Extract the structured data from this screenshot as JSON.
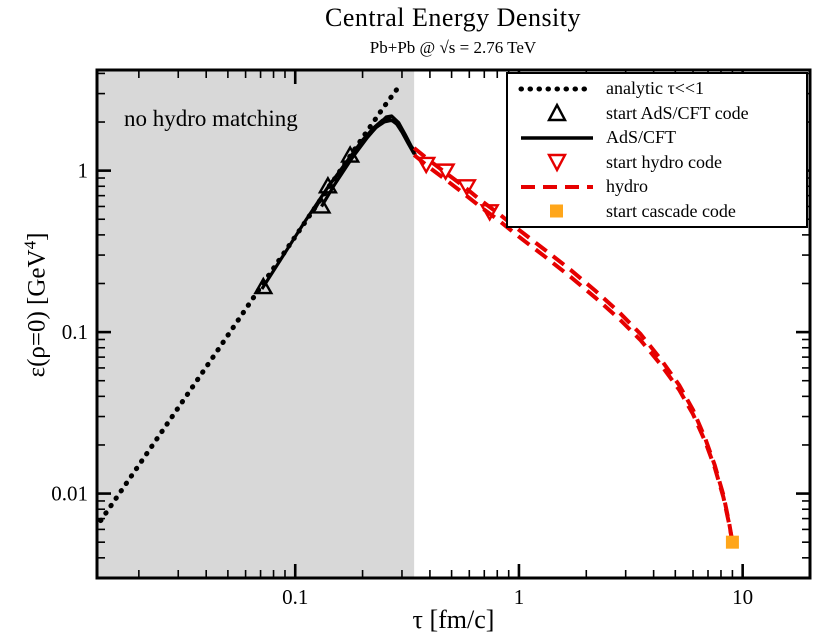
{
  "chart_data": {
    "type": "line",
    "title": "Central Energy Density",
    "subtitle": "Pb+Pb @ √s = 2.76 TeV",
    "xlabel": "τ [fm/c]",
    "ylabel_parts": {
      "main": "ε(ρ=0) [GeV",
      "sup": "4",
      "close": "]"
    },
    "xscale": "log",
    "yscale": "log",
    "xlim": [
      0.013,
      20
    ],
    "ylim": [
      0.003,
      4.2
    ],
    "x_ticks": [
      {
        "v": 0.1,
        "label": "0.1"
      },
      {
        "v": 1,
        "label": "1"
      },
      {
        "v": 10,
        "label": "10"
      }
    ],
    "y_ticks": [
      {
        "v": 0.01,
        "label": "0.01"
      },
      {
        "v": 0.1,
        "label": "0.1"
      },
      {
        "v": 1,
        "label": "1"
      }
    ],
    "shaded_region": {
      "x_from": 0.013,
      "x_to": 0.34,
      "color": "#d8d8d8",
      "label": "no hydro matching"
    },
    "series": [
      {
        "name": "analytic τ<<1",
        "style": "dotted",
        "color": "#000000",
        "width": 5,
        "points": [
          [
            0.0135,
            0.0068
          ],
          [
            0.02,
            0.015
          ],
          [
            0.03,
            0.034
          ],
          [
            0.045,
            0.077
          ],
          [
            0.07,
            0.19
          ],
          [
            0.1,
            0.39
          ],
          [
            0.145,
            0.83
          ],
          [
            0.2,
            1.6
          ],
          [
            0.25,
            2.5
          ],
          [
            0.29,
            3.3
          ]
        ]
      },
      {
        "name": "AdS/CFT",
        "style": "solid",
        "color": "#000000",
        "width": 3.2,
        "points": [
          [
            0.071,
            0.185
          ],
          [
            0.09,
            0.31
          ],
          [
            0.11,
            0.48
          ],
          [
            0.14,
            0.79
          ],
          [
            0.17,
            1.14
          ],
          [
            0.2,
            1.55
          ],
          [
            0.225,
            1.85
          ],
          [
            0.245,
            2.05
          ],
          [
            0.26,
            2.1
          ],
          [
            0.28,
            2.0
          ],
          [
            0.3,
            1.73
          ],
          [
            0.32,
            1.47
          ],
          [
            0.34,
            1.27
          ]
        ]
      },
      {
        "name": "AdS/CFT",
        "style": "solid",
        "color": "#000000",
        "width": 3.2,
        "points": [
          [
            0.131,
            0.6
          ],
          [
            0.15,
            0.82
          ],
          [
            0.18,
            1.2
          ],
          [
            0.21,
            1.6
          ],
          [
            0.235,
            1.92
          ],
          [
            0.255,
            2.15
          ],
          [
            0.27,
            2.18
          ],
          [
            0.29,
            1.98
          ],
          [
            0.31,
            1.68
          ],
          [
            0.33,
            1.42
          ],
          [
            0.345,
            1.3
          ]
        ]
      },
      {
        "name": "AdS/CFT",
        "style": "solid",
        "color": "#000000",
        "width": 3.2,
        "points": [
          [
            0.14,
            0.8
          ],
          [
            0.17,
            1.1
          ],
          [
            0.2,
            1.5
          ],
          [
            0.23,
            1.85
          ],
          [
            0.25,
            2.0
          ],
          [
            0.27,
            2.05
          ],
          [
            0.29,
            1.9
          ],
          [
            0.31,
            1.62
          ],
          [
            0.33,
            1.38
          ],
          [
            0.345,
            1.25
          ]
        ]
      },
      {
        "name": "hydro",
        "style": "dashed",
        "color": "#e60000",
        "width": 4,
        "points": [
          [
            0.34,
            1.25
          ],
          [
            0.4,
            1.04
          ],
          [
            0.47,
            0.88
          ],
          [
            0.56,
            0.73
          ],
          [
            0.67,
            0.6
          ],
          [
            0.8,
            0.5
          ],
          [
            1.0,
            0.39
          ],
          [
            1.3,
            0.295
          ],
          [
            1.7,
            0.22
          ],
          [
            2.2,
            0.163
          ],
          [
            2.8,
            0.121
          ],
          [
            3.5,
            0.089
          ],
          [
            4.3,
            0.063
          ],
          [
            5.2,
            0.044
          ],
          [
            6.0,
            0.031
          ],
          [
            6.8,
            0.021
          ],
          [
            7.5,
            0.0145
          ],
          [
            8.2,
            0.0095
          ],
          [
            8.7,
            0.0065
          ],
          [
            9.0,
            0.005
          ]
        ]
      },
      {
        "name": "hydro",
        "style": "dashed",
        "color": "#e60000",
        "width": 4,
        "points": [
          [
            0.34,
            1.38
          ],
          [
            0.4,
            1.15
          ],
          [
            0.47,
            0.97
          ],
          [
            0.56,
            0.81
          ],
          [
            0.67,
            0.66
          ],
          [
            0.8,
            0.55
          ],
          [
            1.0,
            0.43
          ],
          [
            1.3,
            0.325
          ],
          [
            1.7,
            0.243
          ],
          [
            2.2,
            0.18
          ],
          [
            2.8,
            0.133
          ],
          [
            3.5,
            0.097
          ],
          [
            4.3,
            0.068
          ],
          [
            5.2,
            0.047
          ],
          [
            6.0,
            0.033
          ],
          [
            6.8,
            0.022
          ],
          [
            7.5,
            0.015
          ],
          [
            8.2,
            0.0098
          ],
          [
            8.7,
            0.0066
          ],
          [
            9.0,
            0.005
          ]
        ]
      }
    ],
    "markers": [
      {
        "name": "start AdS/CFT code",
        "shape": "triangle-up",
        "color": "#000000",
        "points": [
          [
            0.072,
            0.19
          ],
          [
            0.131,
            0.6
          ],
          [
            0.14,
            0.8
          ],
          [
            0.176,
            1.24
          ]
        ]
      },
      {
        "name": "start hydro code",
        "shape": "triangle-down",
        "color": "#e60000",
        "points": [
          [
            0.385,
            1.1
          ],
          [
            0.47,
            1.0
          ],
          [
            0.585,
            0.8
          ],
          [
            0.74,
            0.56
          ]
        ]
      },
      {
        "name": "start cascade code",
        "shape": "square",
        "color": "#ffa61a",
        "points": [
          [
            9.0,
            0.005
          ]
        ]
      }
    ]
  },
  "legend": {
    "items": [
      {
        "glyph": "dotted",
        "color": "#000000",
        "label": "analytic τ<<1"
      },
      {
        "glyph": "triangle-up",
        "color": "#000000",
        "label": "start AdS/CFT code"
      },
      {
        "glyph": "line",
        "color": "#000000",
        "label": "AdS/CFT"
      },
      {
        "glyph": "triangle-down",
        "color": "#e60000",
        "label": "start hydro code"
      },
      {
        "glyph": "dashed",
        "color": "#e60000",
        "label": "hydro"
      },
      {
        "glyph": "square",
        "color": "#ffa61a",
        "label": "start cascade code"
      }
    ]
  }
}
